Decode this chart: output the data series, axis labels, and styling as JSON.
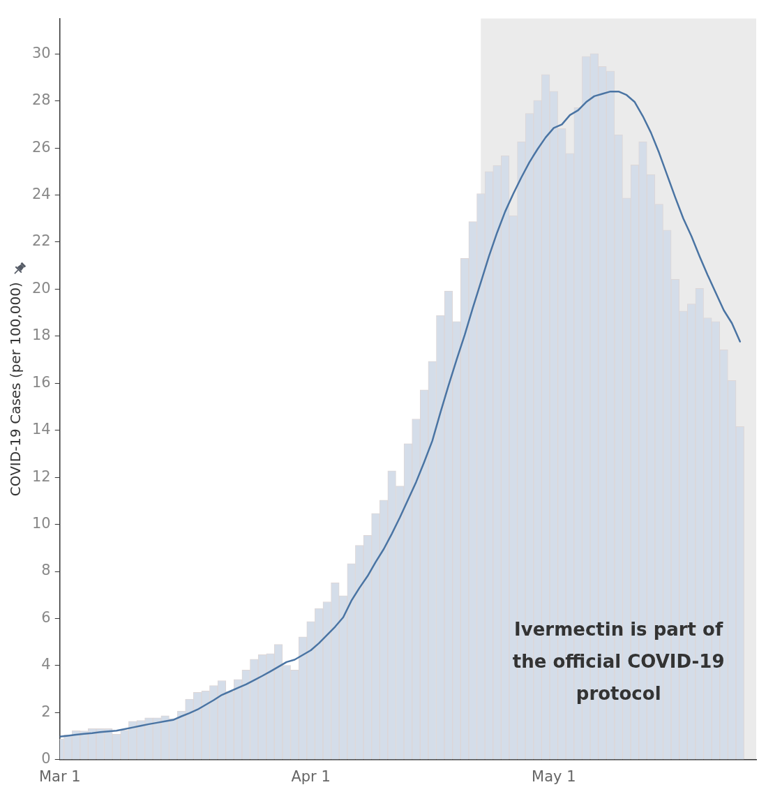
{
  "chart_data": {
    "type": "bar",
    "ylabel": "COVID-19 Cases (per 100,000)",
    "x": [
      "--03-01",
      "--03-02",
      "--03-03",
      "--03-04",
      "--03-05",
      "--03-06",
      "--03-07",
      "--03-08",
      "--03-09",
      "--03-10",
      "--03-11",
      "--03-12",
      "--03-13",
      "--03-14",
      "--03-15",
      "--03-16",
      "--03-17",
      "--03-18",
      "--03-19",
      "--03-20",
      "--03-21",
      "--03-22",
      "--03-23",
      "--03-24",
      "--03-25",
      "--03-26",
      "--03-27",
      "--03-28",
      "--03-29",
      "--03-30",
      "--03-31",
      "--04-01",
      "--04-02",
      "--04-03",
      "--04-04",
      "--04-05",
      "--04-06",
      "--04-07",
      "--04-08",
      "--04-09",
      "--04-10",
      "--04-11",
      "--04-12",
      "--04-13",
      "--04-14",
      "--04-15",
      "--04-16",
      "--04-17",
      "--04-18",
      "--04-19",
      "--04-20",
      "--04-21",
      "--04-22",
      "--04-23",
      "--04-24",
      "--04-25",
      "--04-26",
      "--04-27",
      "--04-28",
      "--04-29",
      "--04-30",
      "--05-01",
      "--05-02",
      "--05-03",
      "--05-04",
      "--05-05",
      "--05-06",
      "--05-07",
      "--05-08",
      "--05-09",
      "--05-10",
      "--05-11",
      "--05-12",
      "--05-13",
      "--05-14",
      "--05-15",
      "--05-16",
      "--05-17",
      "--05-18",
      "--05-19",
      "--05-20",
      "--05-21",
      "--05-22",
      "--05-23",
      "--05-24"
    ],
    "series": [
      {
        "color": "#d4dde9",
        "values": [
          0.88,
          1.05,
          1.23,
          1.22,
          1.32,
          1.32,
          1.32,
          1.08,
          1.25,
          1.63,
          1.67,
          1.78,
          1.78,
          1.87,
          1.75,
          2.07,
          2.57,
          2.86,
          2.92,
          3.15,
          3.36,
          2.9,
          3.41,
          3.81,
          4.27,
          4.46,
          4.51,
          4.9,
          4.01,
          3.81,
          5.22,
          5.87,
          6.43,
          6.71,
          7.52,
          6.97,
          8.33,
          9.11,
          9.53,
          10.47,
          11.03,
          12.28,
          11.63,
          13.43,
          14.48,
          15.72,
          16.93,
          18.88,
          19.92,
          18.62,
          21.31,
          22.87,
          24.06,
          25.0,
          25.26,
          25.67,
          23.12,
          26.27,
          27.47,
          28.02,
          29.12,
          28.41,
          26.82,
          25.77,
          27.71,
          29.89,
          30.01,
          29.46,
          29.27,
          26.56,
          23.87,
          25.28,
          26.27,
          24.87,
          23.61,
          22.51,
          20.42,
          19.07,
          19.37,
          20.03,
          18.78,
          18.62,
          17.42,
          16.12,
          14.16
        ]
      },
      {
        "type": "line",
        "color": "#4a74a3",
        "marker": "none",
        "line_style": "solid",
        "values": [
          0.98,
          1.02,
          1.06,
          1.1,
          1.13,
          1.17,
          1.2,
          1.23,
          1.3,
          1.37,
          1.44,
          1.51,
          1.57,
          1.63,
          1.69,
          1.84,
          1.98,
          2.13,
          2.33,
          2.53,
          2.75,
          2.9,
          3.05,
          3.2,
          3.38,
          3.56,
          3.75,
          3.95,
          4.15,
          4.25,
          4.45,
          4.65,
          4.95,
          5.3,
          5.65,
          6.05,
          6.75,
          7.3,
          7.8,
          8.4,
          8.95,
          9.6,
          10.3,
          11.05,
          11.8,
          12.65,
          13.55,
          14.75,
          15.9,
          17.0,
          18.05,
          19.2,
          20.3,
          21.4,
          22.4,
          23.3,
          24.05,
          24.75,
          25.4,
          25.95,
          26.45,
          26.85,
          27.0,
          27.4,
          27.6,
          27.95,
          28.2,
          28.3,
          28.4,
          28.4,
          28.25,
          27.95,
          27.35,
          26.65,
          25.8,
          24.85,
          23.9,
          23.0,
          22.25,
          21.4,
          20.6,
          19.85,
          19.1,
          18.55,
          17.77
        ]
      }
    ],
    "xlim": [
      "--03-01",
      "--05-26"
    ],
    "xticks": [
      {
        "value": "--03-01",
        "label": "Mar 1"
      },
      {
        "value": "--04-01",
        "label": "Apr 1"
      },
      {
        "value": "--05-01",
        "label": "May 1"
      }
    ],
    "ylim": [
      0,
      31.5
    ],
    "yticks": [
      0,
      2,
      4,
      6,
      8,
      10,
      12,
      14,
      16,
      18,
      20,
      22,
      24,
      26,
      28,
      30
    ],
    "grid": false,
    "legend": false,
    "bands": [
      {
        "axis": "x",
        "from": "--04-22",
        "to": "--05-26",
        "color": "#ebebeb"
      }
    ],
    "annotations": [
      "Ivermectin is part of the official COVID-19 protocol"
    ]
  }
}
